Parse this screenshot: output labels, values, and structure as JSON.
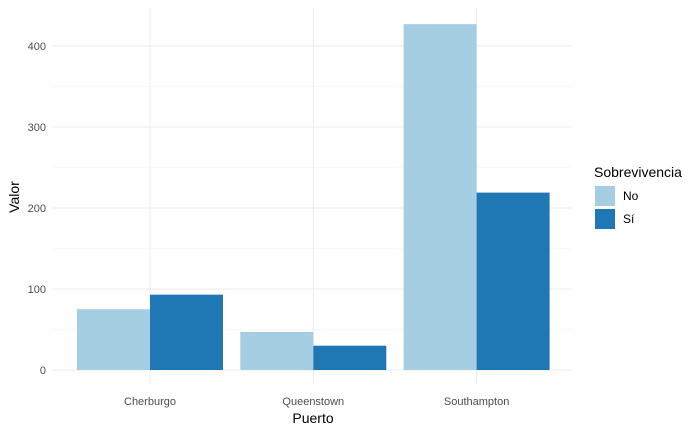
{
  "chart_data": {
    "type": "bar",
    "title": "",
    "xlabel": "Puerto",
    "ylabel": "Valor",
    "categories": [
      "Cherburgo",
      "Queenstown",
      "Southampton"
    ],
    "series": [
      {
        "name": "No",
        "values": [
          75,
          47,
          427
        ],
        "color": "#a6cee3"
      },
      {
        "name": "Sí",
        "values": [
          93,
          30,
          219
        ],
        "color": "#1f78b4"
      }
    ],
    "ylim": [
      0,
      435
    ],
    "yticks": [
      0,
      100,
      200,
      300,
      400
    ],
    "grid": true,
    "legend": {
      "title": "Sobrevivencia",
      "position": "right"
    }
  }
}
